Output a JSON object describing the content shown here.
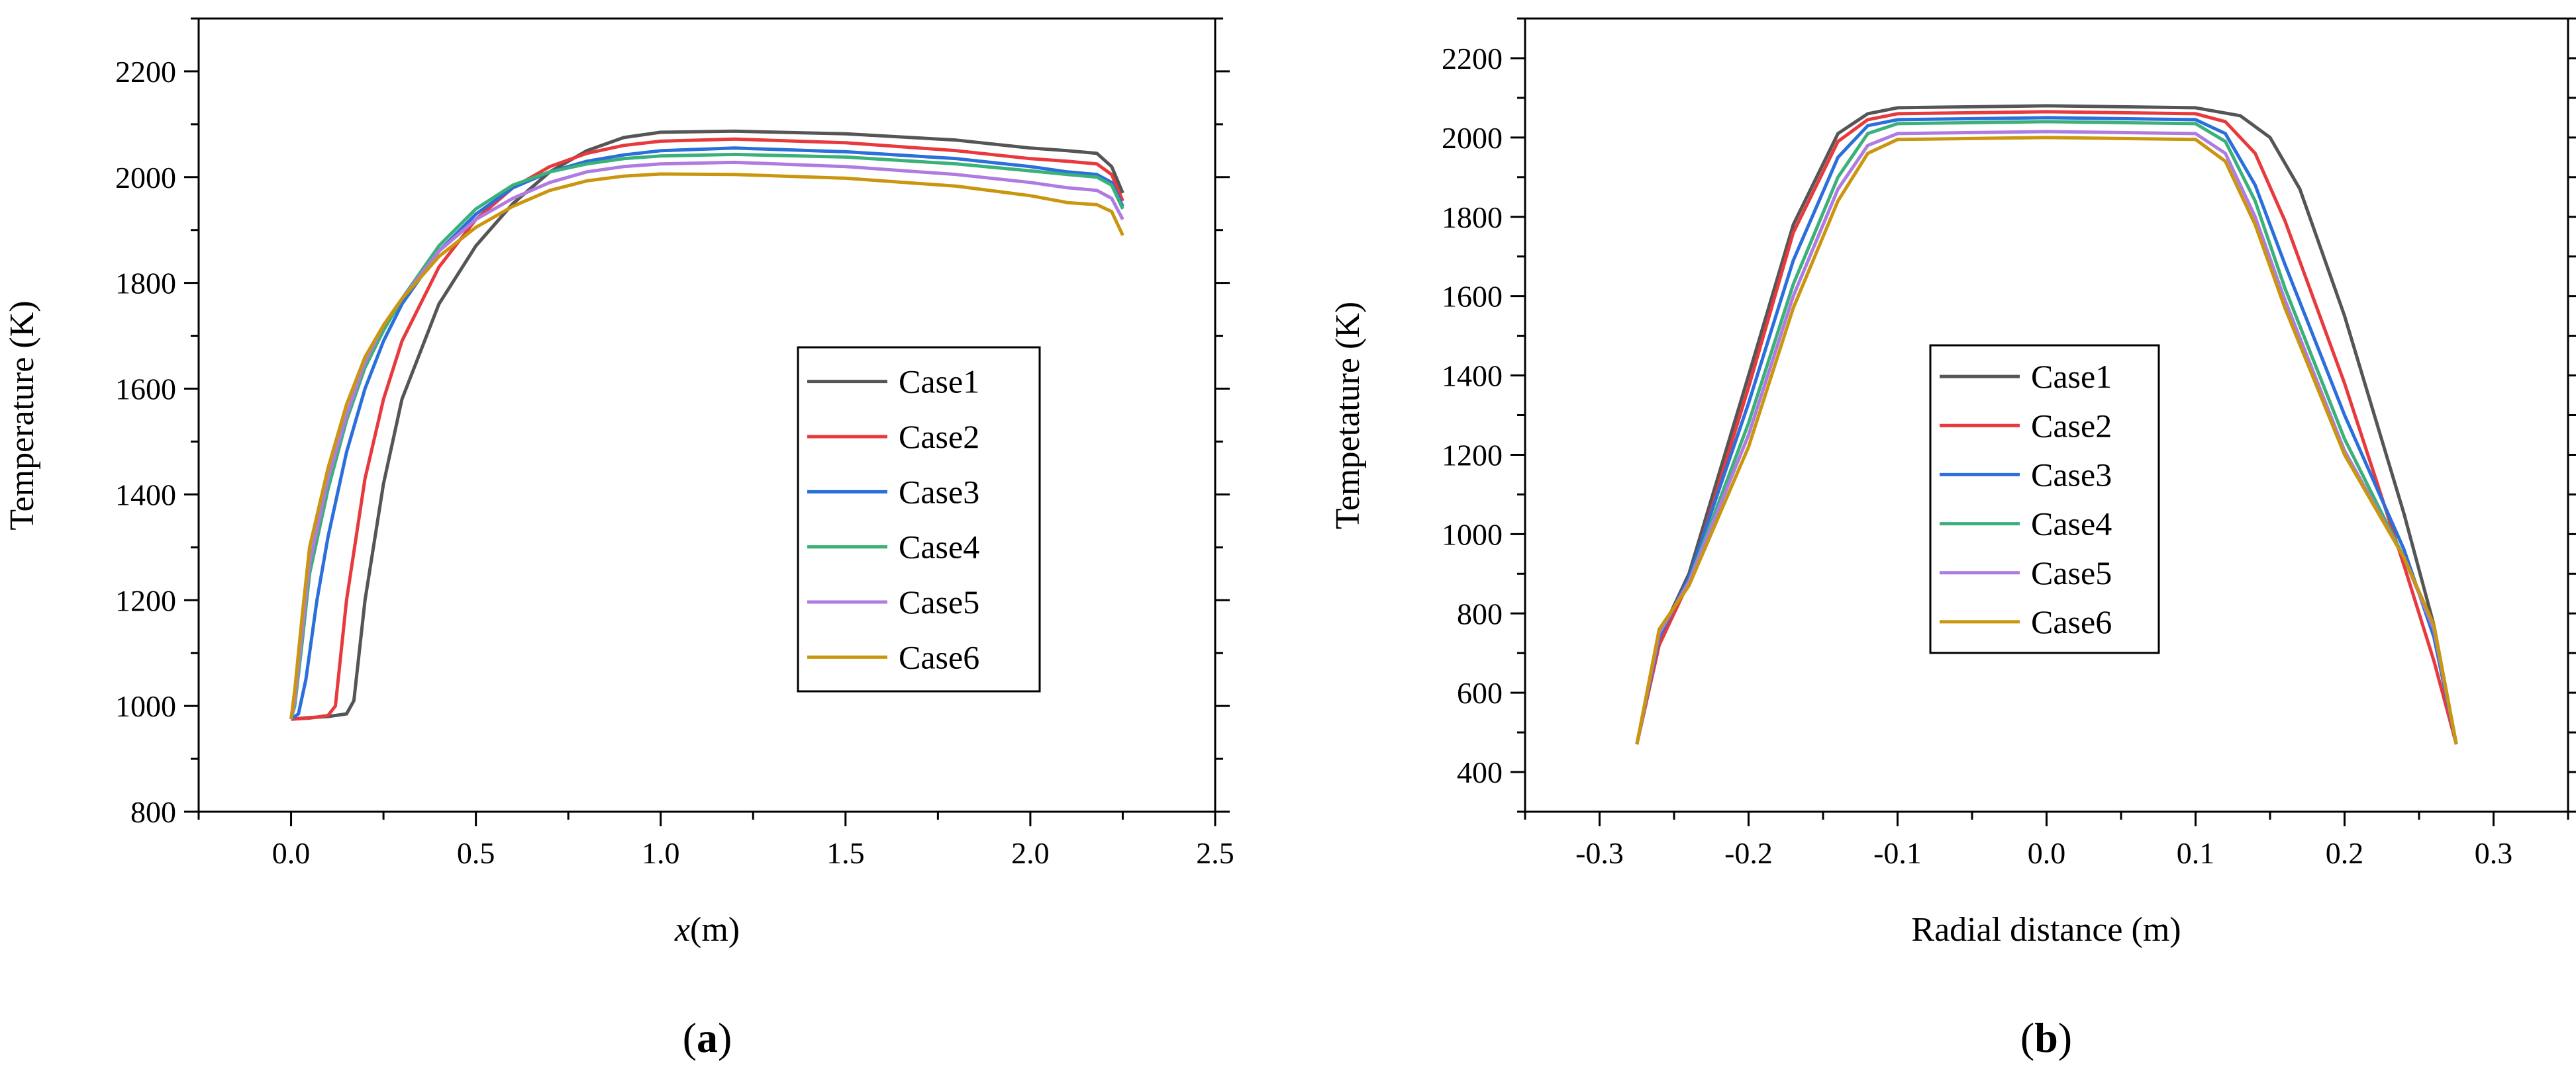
{
  "chart_data": [
    {
      "type": "line",
      "panel_label": "a",
      "xlabel_italic": "x",
      "xlabel_rest": "(m)",
      "ylabel": "Temperature (K)",
      "xlim": [
        -0.25,
        2.5
      ],
      "ylim": [
        800,
        2300
      ],
      "xticks": [
        0.0,
        0.5,
        1.0,
        1.5,
        2.0,
        2.5
      ],
      "xtick_labels": [
        "0.0",
        "0.5",
        "1.0",
        "1.5",
        "2.0",
        "2.5"
      ],
      "yticks": [
        800,
        1000,
        1200,
        1400,
        1600,
        1800,
        2000,
        2200
      ],
      "ytick_labels": [
        "800",
        "1000",
        "1200",
        "1400",
        "1600",
        "1800",
        "2000",
        "2200"
      ],
      "legend_position": "center-right",
      "series": [
        {
          "name": "Case1",
          "color": "#555555",
          "x": [
            0.0,
            0.05,
            0.1,
            0.15,
            0.17,
            0.2,
            0.25,
            0.3,
            0.4,
            0.5,
            0.6,
            0.7,
            0.8,
            0.9,
            1.0,
            1.2,
            1.5,
            1.8,
            2.0,
            2.1,
            2.18,
            2.22,
            2.25
          ],
          "y": [
            975,
            978,
            980,
            985,
            1010,
            1200,
            1420,
            1580,
            1760,
            1870,
            1950,
            2010,
            2050,
            2075,
            2085,
            2087,
            2082,
            2070,
            2055,
            2050,
            2045,
            2020,
            1970
          ]
        },
        {
          "name": "Case2",
          "color": "#e8393d",
          "x": [
            0.0,
            0.05,
            0.1,
            0.12,
            0.15,
            0.2,
            0.25,
            0.3,
            0.4,
            0.5,
            0.6,
            0.7,
            0.8,
            0.9,
            1.0,
            1.2,
            1.5,
            1.8,
            2.0,
            2.1,
            2.18,
            2.22,
            2.25
          ],
          "y": [
            975,
            977,
            982,
            1000,
            1200,
            1430,
            1580,
            1690,
            1830,
            1920,
            1980,
            2020,
            2045,
            2060,
            2068,
            2072,
            2065,
            2050,
            2035,
            2030,
            2025,
            2005,
            1955
          ]
        },
        {
          "name": "Case3",
          "color": "#2a6fdb",
          "x": [
            0.0,
            0.02,
            0.04,
            0.07,
            0.1,
            0.15,
            0.2,
            0.25,
            0.3,
            0.4,
            0.5,
            0.6,
            0.7,
            0.8,
            0.9,
            1.0,
            1.2,
            1.5,
            1.8,
            2.0,
            2.1,
            2.18,
            2.22,
            2.25
          ],
          "y": [
            975,
            985,
            1050,
            1200,
            1320,
            1480,
            1600,
            1690,
            1760,
            1860,
            1930,
            1980,
            2010,
            2030,
            2042,
            2050,
            2055,
            2048,
            2035,
            2020,
            2010,
            2005,
            1990,
            1945
          ]
        },
        {
          "name": "Case4",
          "color": "#3bb17a",
          "x": [
            0.0,
            0.01,
            0.03,
            0.05,
            0.1,
            0.15,
            0.2,
            0.25,
            0.3,
            0.4,
            0.5,
            0.6,
            0.7,
            0.8,
            0.9,
            1.0,
            1.2,
            1.5,
            1.8,
            2.0,
            2.1,
            2.18,
            2.22,
            2.25
          ],
          "y": [
            975,
            1000,
            1120,
            1250,
            1410,
            1540,
            1640,
            1710,
            1770,
            1870,
            1940,
            1985,
            2010,
            2025,
            2035,
            2040,
            2043,
            2038,
            2025,
            2012,
            2005,
            2000,
            1985,
            1940
          ]
        },
        {
          "name": "Case5",
          "color": "#b07be0",
          "x": [
            0.0,
            0.01,
            0.03,
            0.05,
            0.1,
            0.15,
            0.2,
            0.25,
            0.3,
            0.4,
            0.5,
            0.6,
            0.7,
            0.8,
            0.9,
            1.0,
            1.2,
            1.5,
            1.8,
            2.0,
            2.1,
            2.18,
            2.22,
            2.25
          ],
          "y": [
            975,
            1010,
            1140,
            1270,
            1430,
            1550,
            1650,
            1720,
            1770,
            1860,
            1920,
            1960,
            1990,
            2010,
            2020,
            2025,
            2028,
            2020,
            2005,
            1990,
            1980,
            1975,
            1960,
            1920
          ]
        },
        {
          "name": "Case6",
          "color": "#c9960e",
          "x": [
            0.0,
            0.01,
            0.03,
            0.05,
            0.1,
            0.15,
            0.2,
            0.25,
            0.3,
            0.4,
            0.5,
            0.6,
            0.7,
            0.8,
            0.9,
            1.0,
            1.2,
            1.5,
            1.8,
            2.0,
            2.1,
            2.18,
            2.22,
            2.25
          ],
          "y": [
            975,
            1030,
            1170,
            1300,
            1450,
            1570,
            1660,
            1720,
            1770,
            1850,
            1905,
            1945,
            1975,
            1993,
            2002,
            2006,
            2005,
            1998,
            1983,
            1965,
            1952,
            1948,
            1935,
            1890
          ]
        }
      ]
    },
    {
      "type": "line",
      "panel_label": "b",
      "xlabel": "Radial distance (m)",
      "ylabel": "Tempetature (K)",
      "xlim": [
        -0.35,
        0.35
      ],
      "ylim": [
        300,
        2300
      ],
      "xticks": [
        -0.3,
        -0.2,
        -0.1,
        0.0,
        0.1,
        0.2,
        0.3
      ],
      "xtick_labels": [
        "-0.3",
        "-0.2",
        "-0.1",
        "0.0",
        "0.1",
        "0.2",
        "0.3"
      ],
      "yticks": [
        400,
        600,
        800,
        1000,
        1200,
        1400,
        1600,
        1800,
        2000,
        2200
      ],
      "ytick_labels": [
        "400",
        "600",
        "800",
        "1000",
        "1200",
        "1400",
        "1600",
        "1800",
        "2000",
        "2200"
      ],
      "legend_position": "center",
      "series": [
        {
          "name": "Case1",
          "color": "#555555",
          "x": [
            -0.275,
            -0.26,
            -0.24,
            -0.2,
            -0.17,
            -0.14,
            -0.12,
            -0.1,
            0.0,
            0.1,
            0.13,
            0.15,
            0.17,
            0.2,
            0.24,
            0.26,
            0.275
          ],
          "y": [
            470,
            740,
            900,
            1400,
            1780,
            2010,
            2060,
            2075,
            2080,
            2075,
            2055,
            2000,
            1870,
            1550,
            1050,
            770,
            470
          ]
        },
        {
          "name": "Case2",
          "color": "#e8393d",
          "x": [
            -0.275,
            -0.26,
            -0.24,
            -0.2,
            -0.17,
            -0.14,
            -0.12,
            -0.1,
            0.0,
            0.1,
            0.12,
            0.14,
            0.16,
            0.2,
            0.24,
            0.26,
            0.275
          ],
          "y": [
            470,
            720,
            880,
            1370,
            1760,
            1990,
            2045,
            2060,
            2065,
            2060,
            2040,
            1960,
            1790,
            1380,
            920,
            680,
            470
          ]
        },
        {
          "name": "Case3",
          "color": "#2a6fdb",
          "x": [
            -0.275,
            -0.26,
            -0.24,
            -0.2,
            -0.17,
            -0.14,
            -0.12,
            -0.1,
            0.0,
            0.1,
            0.12,
            0.14,
            0.16,
            0.2,
            0.24,
            0.26,
            0.275
          ],
          "y": [
            470,
            740,
            890,
            1330,
            1690,
            1950,
            2030,
            2045,
            2050,
            2045,
            2010,
            1880,
            1680,
            1300,
            960,
            740,
            470
          ]
        },
        {
          "name": "Case4",
          "color": "#3bb17a",
          "x": [
            -0.275,
            -0.26,
            -0.24,
            -0.2,
            -0.17,
            -0.14,
            -0.12,
            -0.1,
            0.0,
            0.1,
            0.12,
            0.14,
            0.16,
            0.2,
            0.24,
            0.26,
            0.275
          ],
          "y": [
            470,
            750,
            880,
            1280,
            1630,
            1900,
            2010,
            2035,
            2040,
            2035,
            1990,
            1840,
            1620,
            1240,
            940,
            760,
            470
          ]
        },
        {
          "name": "Case5",
          "color": "#b07be0",
          "x": [
            -0.275,
            -0.26,
            -0.24,
            -0.2,
            -0.17,
            -0.14,
            -0.12,
            -0.1,
            0.0,
            0.1,
            0.12,
            0.14,
            0.16,
            0.2,
            0.24,
            0.26,
            0.275
          ],
          "y": [
            470,
            750,
            880,
            1250,
            1600,
            1870,
            1980,
            2010,
            2015,
            2010,
            1960,
            1800,
            1590,
            1210,
            940,
            760,
            470
          ]
        },
        {
          "name": "Case6",
          "color": "#c9960e",
          "x": [
            -0.275,
            -0.26,
            -0.24,
            -0.2,
            -0.17,
            -0.14,
            -0.12,
            -0.1,
            0.0,
            0.1,
            0.12,
            0.14,
            0.16,
            0.2,
            0.24,
            0.26,
            0.275
          ],
          "y": [
            470,
            760,
            870,
            1220,
            1570,
            1840,
            1960,
            1995,
            2000,
            1995,
            1940,
            1780,
            1570,
            1200,
            940,
            770,
            470
          ]
        }
      ]
    }
  ]
}
